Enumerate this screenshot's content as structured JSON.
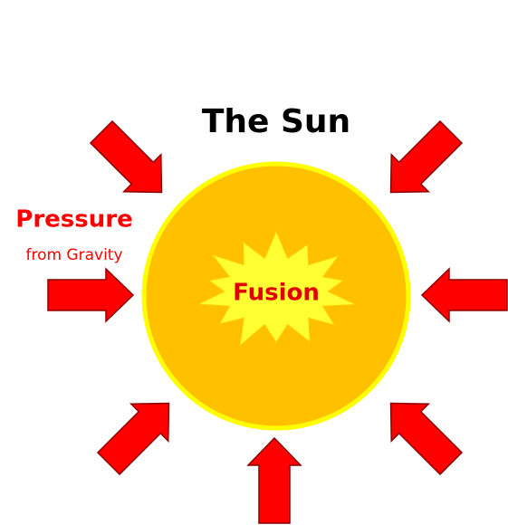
{
  "title": "The Sun",
  "force": {
    "label": "Pressure",
    "source": "from Gravity"
  },
  "core": {
    "label": "Fusion"
  }
}
